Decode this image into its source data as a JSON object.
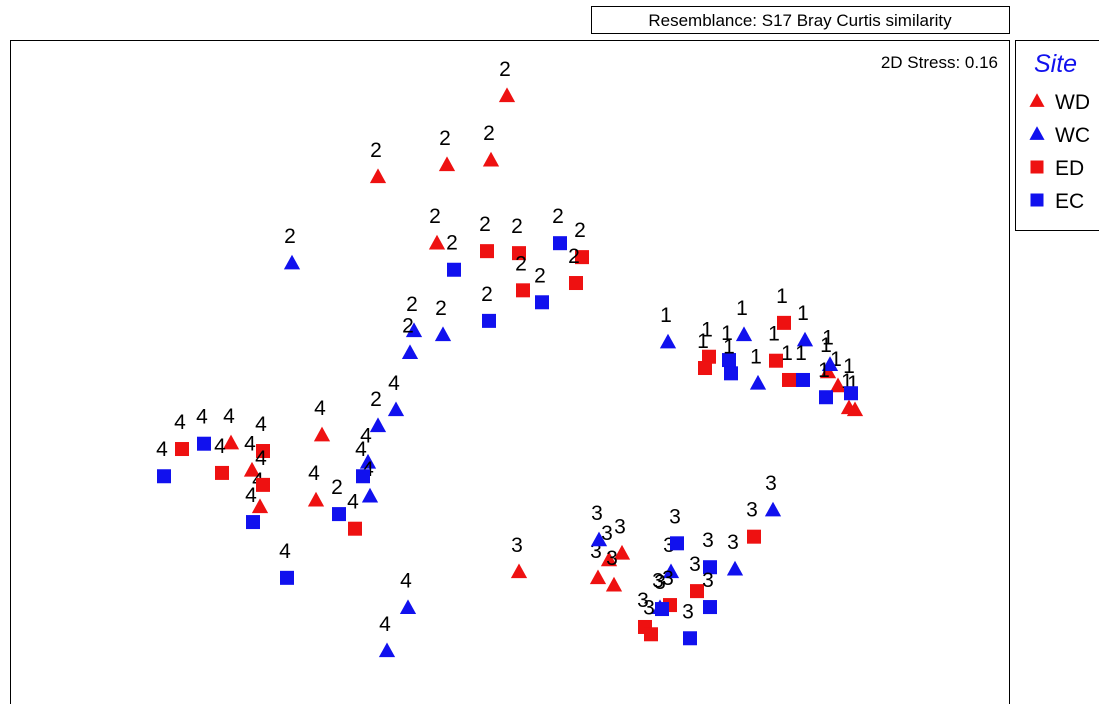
{
  "chart_data": {
    "type": "scatter",
    "title": "Resemblance: S17 Bray Curtis similarity",
    "annotation": "2D Stress: 0.16",
    "legend_title": "Site",
    "legend_position": "right",
    "xlim": [
      0,
      100
    ],
    "ylim": [
      0,
      100
    ],
    "series": [
      {
        "name": "WD",
        "color": "#ee1111",
        "marker": "triangle",
        "x": [
          49.7,
          43.7,
          48.1,
          36.8,
          42.7,
          31.2,
          22.1,
          24.2,
          25.0,
          30.6,
          50.9,
          61.2,
          59.9,
          58.8,
          60.4,
          81.8,
          82.8,
          83.9,
          84.5
        ],
        "values": [
          91.6,
          81.2,
          81.9,
          79.4,
          69.4,
          40.5,
          39.3,
          35.2,
          29.7,
          30.7,
          19.9,
          22.7,
          21.7,
          19.0,
          17.9,
          50.0,
          47.9,
          44.6,
          44.3
        ],
        "labels": [
          "2",
          "2",
          "2",
          "2",
          "2",
          "4",
          "4",
          "4",
          "4",
          "4",
          "3",
          "3",
          "3",
          "3",
          "3",
          "1",
          "1",
          "1",
          "1"
        ]
      },
      {
        "name": "WC",
        "color": "#1111ee",
        "marker": "triangle",
        "x": [
          28.2,
          40.4,
          43.3,
          40.0,
          38.6,
          36.8,
          35.8,
          36.0,
          39.8,
          37.7,
          65.8,
          73.4,
          79.5,
          74.8,
          82.0,
          58.9,
          66.1,
          72.5,
          76.3,
          65.0
        ],
        "values": [
          66.4,
          56.2,
          55.6,
          52.9,
          44.3,
          41.9,
          36.4,
          31.3,
          14.5,
          8.0,
          54.5,
          55.6,
          54.8,
          48.3,
          51.1,
          24.7,
          19.9,
          20.3,
          29.2,
          14.5
        ],
        "labels": [
          "2",
          "2",
          "2",
          "2",
          "4",
          "2",
          "4",
          "4",
          "4",
          "4",
          "1",
          "1",
          "1",
          "1",
          "1",
          "3",
          "3",
          "3",
          "3",
          "3"
        ]
      },
      {
        "name": "ED",
        "color": "#ee1111",
        "marker": "square",
        "x": [
          47.7,
          50.9,
          57.2,
          51.3,
          56.6,
          17.2,
          21.2,
          25.3,
          25.3,
          34.5,
          77.4,
          69.9,
          69.5,
          76.6,
          77.9,
          74.4,
          68.7,
          66.0,
          63.5,
          64.1
        ],
        "values": [
          68.2,
          67.9,
          67.3,
          62.3,
          63.4,
          38.4,
          34.8,
          38.1,
          33.0,
          26.4,
          57.4,
          52.3,
          50.6,
          51.7,
          48.8,
          25.2,
          17.0,
          14.9,
          11.6,
          10.5
        ],
        "labels": [
          "2",
          "2",
          "2",
          "2",
          "2",
          "4",
          "4",
          "4",
          "4",
          "4",
          "1",
          "1",
          "1",
          "1",
          "1",
          "3",
          "3",
          "3",
          "3",
          "3"
        ]
      },
      {
        "name": "EC",
        "color": "#1111ee",
        "marker": "square",
        "x": [
          44.4,
          55.0,
          53.2,
          47.9,
          15.4,
          19.4,
          24.3,
          27.7,
          32.9,
          35.3,
          71.9,
          72.1,
          79.3,
          81.6,
          84.1,
          66.7,
          70.0,
          65.2,
          70.0,
          68.0
        ],
        "values": [
          65.4,
          69.4,
          60.5,
          57.7,
          34.3,
          39.2,
          27.4,
          19.0,
          28.6,
          34.3,
          51.8,
          49.8,
          48.8,
          46.2,
          46.8,
          24.2,
          20.6,
          14.3,
          14.6,
          9.9
        ],
        "labels": [
          "2",
          "2",
          "2",
          "2",
          "4",
          "4",
          "4",
          "4",
          "2",
          "4",
          "1",
          "1",
          "1",
          "1",
          "1",
          "3",
          "3",
          "3",
          "3",
          "3"
        ]
      }
    ]
  }
}
